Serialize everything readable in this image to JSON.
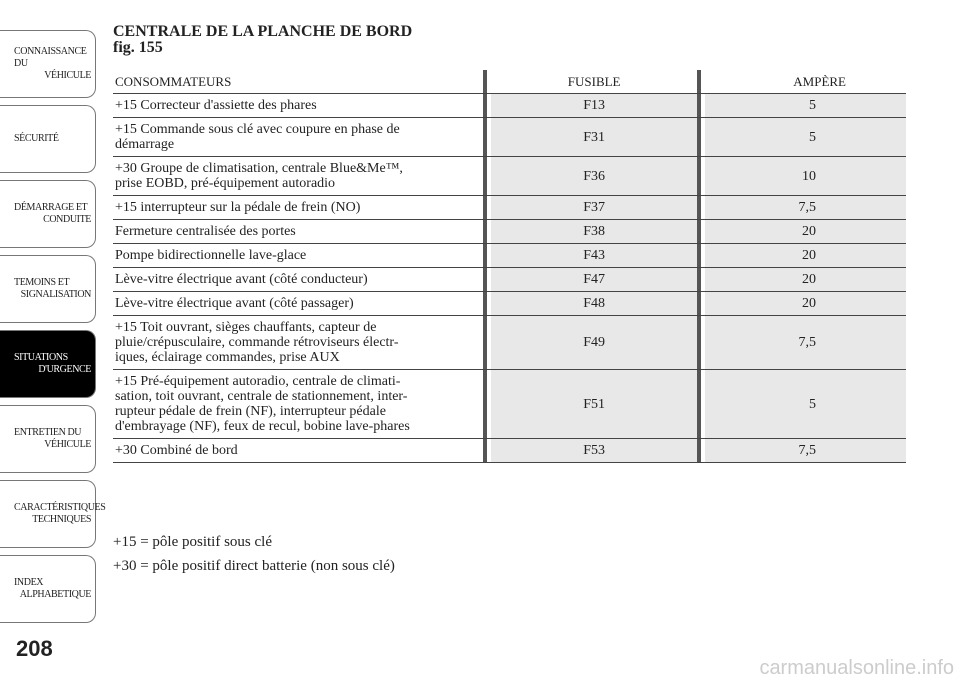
{
  "sidebar": {
    "tabs": [
      {
        "lines": [
          "CONNAISSANCE DU",
          "VÉHICULE"
        ]
      },
      {
        "lines": [
          "SÉCURITÉ"
        ]
      },
      {
        "lines": [
          "DÉMARRAGE ET",
          "CONDUITE"
        ]
      },
      {
        "lines": [
          "TEMOINS ET",
          "SIGNALISATION"
        ]
      },
      {
        "lines": [
          "SITUATIONS",
          "D'URGENCE"
        ]
      },
      {
        "lines": [
          "ENTRETIEN DU",
          "VÉHICULE"
        ]
      },
      {
        "lines": [
          "CARACTÉRISTIQUES",
          "TECHNIQUES"
        ]
      },
      {
        "lines": [
          "INDEX",
          "ALPHABETIQUE"
        ]
      }
    ],
    "active": 4
  },
  "page_number": "208",
  "header": {
    "title": "CENTRALE DE LA PLANCHE DE BORD",
    "figure": "fig. 155"
  },
  "table": {
    "columns": [
      "CONSOMMATEURS",
      "FUSIBLE",
      "AMPÈRE"
    ],
    "rows": [
      [
        [
          "+15 Correcteur d'assiette des phares"
        ],
        "F13",
        "5"
      ],
      [
        [
          "+15 Commande sous clé avec coupure en phase de",
          "démarrage"
        ],
        "F31",
        "5"
      ],
      [
        [
          "+30 Groupe de climatisation, centrale Blue&Me™,",
          "prise EOBD, pré-équipement autoradio"
        ],
        "F36",
        "10"
      ],
      [
        [
          "+15 interrupteur sur la pédale de frein (NO)"
        ],
        "F37",
        "7,5"
      ],
      [
        [
          "Fermeture centralisée des portes"
        ],
        "F38",
        "20"
      ],
      [
        [
          "Pompe bidirectionnelle lave-glace"
        ],
        "F43",
        "20"
      ],
      [
        [
          "Lève-vitre électrique avant (côté conducteur)"
        ],
        "F47",
        "20"
      ],
      [
        [
          "Lève-vitre électrique avant (côté passager)"
        ],
        "F48",
        "20"
      ],
      [
        [
          "+15 Toit ouvrant, sièges chauffants, capteur de",
          "pluie/crépusculaire, commande rétroviseurs électr-",
          "iques, éclairage commandes, prise AUX"
        ],
        "F49",
        "7,5"
      ],
      [
        [
          "+15 Pré-équipement autoradio, centrale de climati-",
          "sation, toit ouvrant, centrale de stationnement, inter-",
          "rupteur pédale de frein (NF), interrupteur pédale",
          "d'embrayage (NF), feux de recul, bobine lave-phares"
        ],
        "F51",
        "5"
      ],
      [
        [
          "+30 Combiné de bord"
        ],
        "F53",
        "7,5"
      ]
    ]
  },
  "notes": [
    "+15 = pôle positif sous clé",
    "+30 = pôle positif direct batterie (non sous clé)"
  ],
  "watermark": "carmanualsonline.info"
}
